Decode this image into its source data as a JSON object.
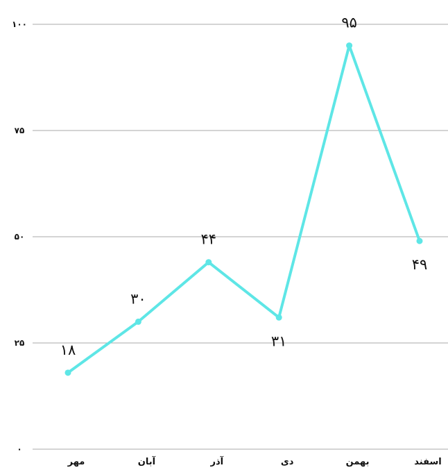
{
  "chart_data": {
    "type": "line",
    "categories": [
      "مهر",
      "آبان",
      "آذر",
      "دی",
      "بهمن",
      "اسفند"
    ],
    "series": [
      {
        "values": [
          18,
          30,
          44,
          31,
          95,
          49
        ],
        "color": "#5ee6e6"
      }
    ],
    "data_labels": [
      "۱۸",
      "۳۰",
      "۴۴",
      "۳۱",
      "۹۵",
      "۴۹"
    ],
    "yticks": [
      0,
      25,
      50,
      75,
      100
    ],
    "ytick_labels": [
      "۰",
      "۲۵",
      "۵۰",
      "۷۵",
      "۱۰۰"
    ],
    "ylim": [
      0,
      100
    ],
    "grid": true,
    "legend": "none",
    "title": "",
    "xlabel": "",
    "ylabel": ""
  }
}
